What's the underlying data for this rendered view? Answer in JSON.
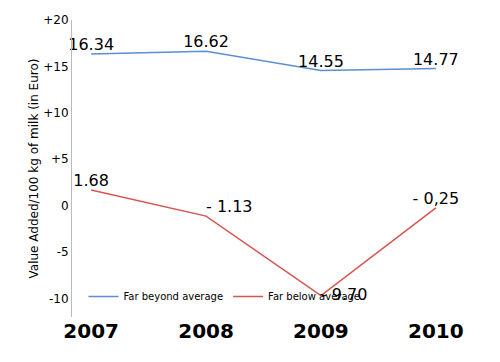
{
  "chart_data": {
    "type": "line",
    "y_label": "Value Added/100 kg of milk (in Euro)",
    "categories": [
      "2007",
      "2008",
      "2009",
      "2010"
    ],
    "series": [
      {
        "name": "Far beyond average",
        "color": "#5b8fd0",
        "values": [
          16.34,
          16.62,
          14.55,
          14.77
        ],
        "value_labels": [
          "16.34",
          "16.62",
          "14.55",
          "14.77"
        ]
      },
      {
        "name": "Far below average",
        "color": "#d9534f",
        "values": [
          1.68,
          -1.13,
          -9.7,
          -0.25
        ],
        "value_labels": [
          "1.68",
          "- 1.13",
          "- 9.70",
          "- 0,25"
        ]
      }
    ],
    "ylim": [
      -12,
      20
    ],
    "yticks": [
      {
        "value": 20,
        "label": "+20"
      },
      {
        "value": 15,
        "label": "+15"
      },
      {
        "value": 10,
        "label": "+10"
      },
      {
        "value": 5,
        "label": "+5"
      },
      0,
      -5,
      -10
    ],
    "grid": false,
    "legend": "bottom left",
    "data_labels": true
  }
}
